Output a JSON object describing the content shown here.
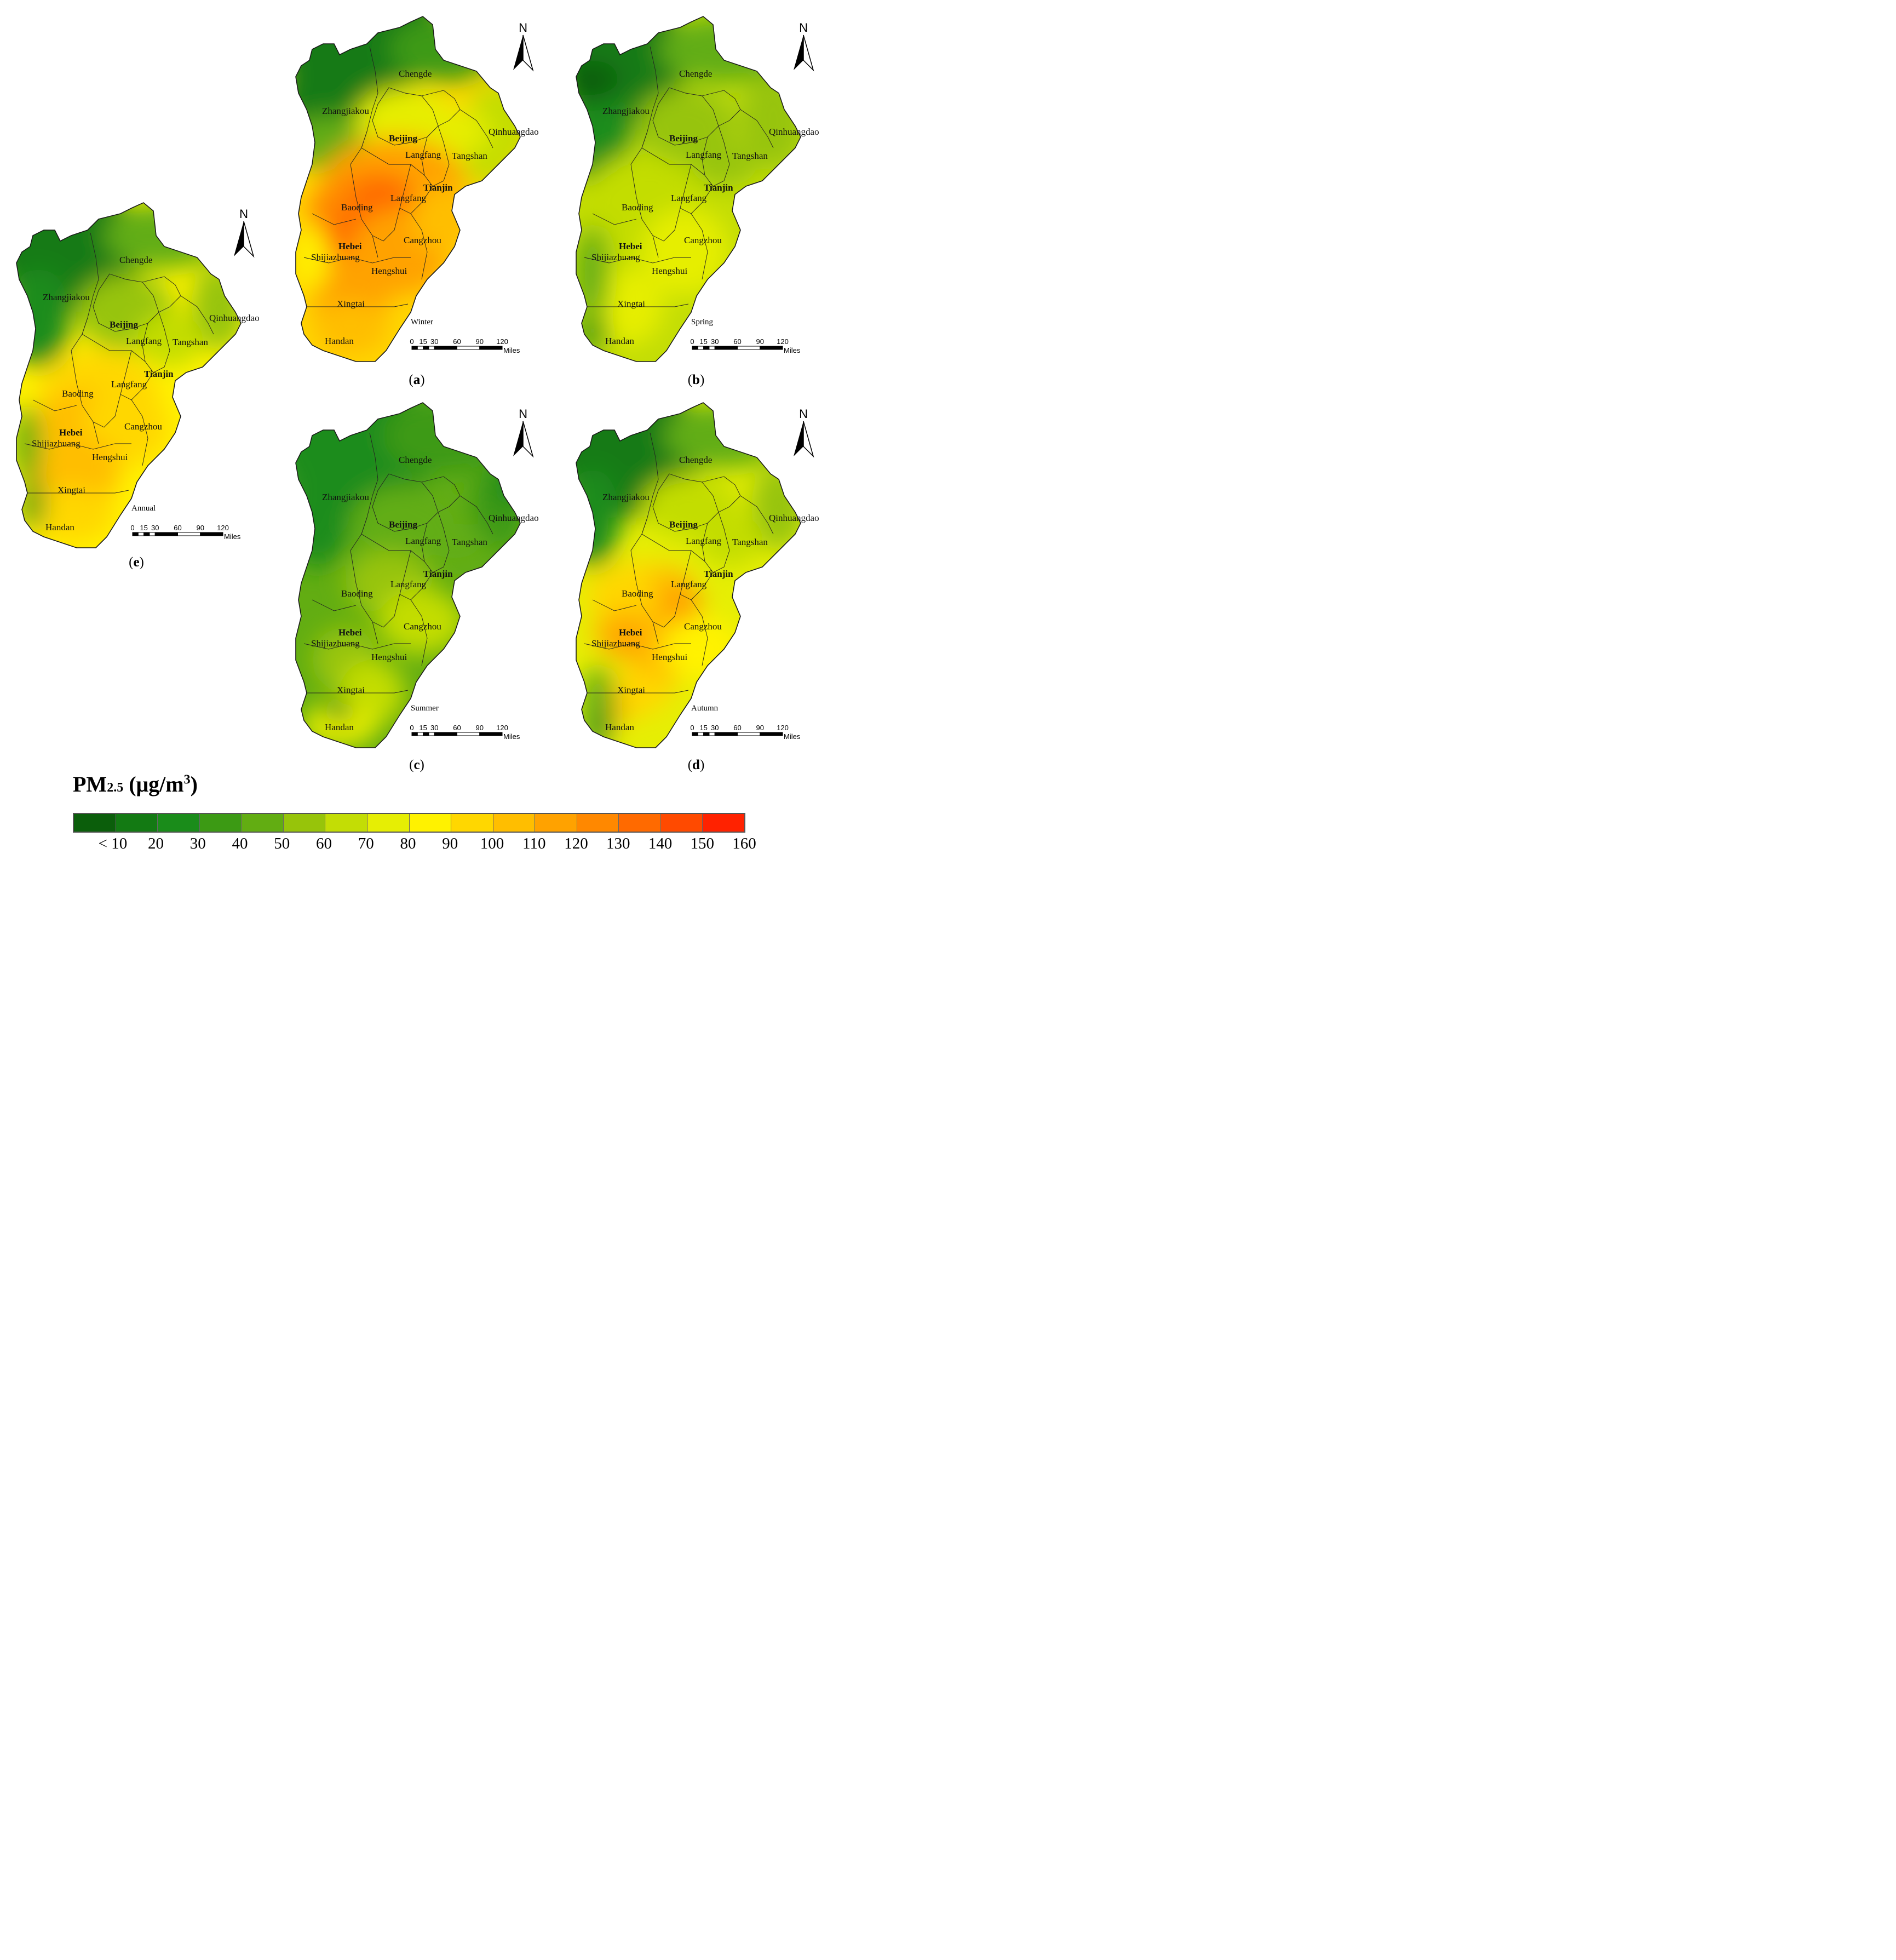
{
  "legend": {
    "title_main": "PM",
    "title_sub": "2.5",
    "title_unit_pre": " (μg/m",
    "title_unit_sup": "3",
    "title_unit_post": ")",
    "colors": [
      "#0b5e0b",
      "#137a13",
      "#1a8c1a",
      "#3c9a14",
      "#62ad12",
      "#97c40a",
      "#c3dd05",
      "#e6ee04",
      "#fff200",
      "#ffd700",
      "#ffbe00",
      "#ffa200",
      "#ff8800",
      "#ff6a00",
      "#ff4a00",
      "#ff2200"
    ],
    "ticks": [
      "< 10",
      "20",
      "30",
      "40",
      "50",
      "60",
      "70",
      "80",
      "90",
      "100",
      "110",
      "120",
      "130",
      "140",
      "150",
      "160"
    ]
  },
  "scale_bar": {
    "labels": [
      "0",
      "15",
      "30",
      "60",
      "90",
      "120"
    ],
    "unit": "Miles"
  },
  "north_label": "N",
  "region_labels": {
    "chengde": "Chengde",
    "zhangjiakou": "Zhangjiakou",
    "qinhuangdao": "Qinhuangdao",
    "beijing": "Beijing",
    "langfang_n": "Langfang",
    "tangshan": "Tangshan",
    "tianjin": "Tianjin",
    "baoding": "Baoding",
    "langfang_s": "Langfang",
    "hebei": "Hebei",
    "shijiazhuang": "Shijiazhuang",
    "cangzhou": "Cangzhou",
    "hengshui": "Hengshui",
    "xingtai": "Xingtai",
    "handan": "Handan"
  },
  "panels": [
    {
      "id": "a",
      "season": "Winter",
      "caption": "a"
    },
    {
      "id": "b",
      "season": "Spring",
      "caption": "b"
    },
    {
      "id": "c",
      "season": "Summer",
      "caption": "c"
    },
    {
      "id": "d",
      "season": "Autumn",
      "caption": "d"
    },
    {
      "id": "e",
      "season": "Annual",
      "caption": "e"
    }
  ]
}
